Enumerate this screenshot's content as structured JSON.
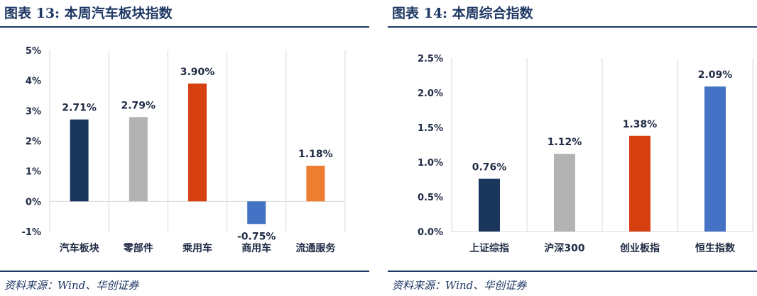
{
  "figures": [
    {
      "title": "图表 13:  本周汽车板块指数",
      "source": "资料来源：Wind、华创证券",
      "chart_data": {
        "type": "bar",
        "title": "",
        "xlabel": "",
        "ylabel": "",
        "categories": [
          "汽车板块",
          "零部件",
          "乘用车",
          "商用车",
          "流通服务"
        ],
        "values": [
          2.71,
          2.79,
          3.9,
          -0.75,
          1.18
        ],
        "value_labels": [
          "2.71%",
          "2.79%",
          "3.90%",
          "-0.75%",
          "1.18%"
        ],
        "colors": [
          "#1b365d",
          "#b3b3b3",
          "#d64011",
          "#4472c4",
          "#ed7d31"
        ],
        "ylim": [
          -1,
          5
        ],
        "yticks": [
          -1,
          0,
          1,
          2,
          3,
          4,
          5
        ],
        "ytick_labels": [
          "-1%",
          "0%",
          "1%",
          "2%",
          "3%",
          "4%",
          "5%"
        ],
        "grid": "vertical",
        "legend": "none"
      }
    },
    {
      "title": "图表 14:  本周综合指数",
      "source": "资料来源：Wind、华创证券",
      "chart_data": {
        "type": "bar",
        "title": "",
        "xlabel": "",
        "ylabel": "",
        "categories": [
          "上证综指",
          "沪深300",
          "创业板指",
          "恒生指数"
        ],
        "values": [
          0.76,
          1.12,
          1.38,
          2.09
        ],
        "value_labels": [
          "0.76%",
          "1.12%",
          "1.38%",
          "2.09%"
        ],
        "colors": [
          "#1b365d",
          "#b3b3b3",
          "#d64011",
          "#4472c4"
        ],
        "ylim": [
          0,
          2.5
        ],
        "yticks": [
          0,
          0.5,
          1.0,
          1.5,
          2.0,
          2.5
        ],
        "ytick_labels": [
          "0.0%",
          "0.5%",
          "1.0%",
          "1.5%",
          "2.0%",
          "2.5%"
        ],
        "grid": "vertical",
        "legend": "none"
      }
    }
  ]
}
